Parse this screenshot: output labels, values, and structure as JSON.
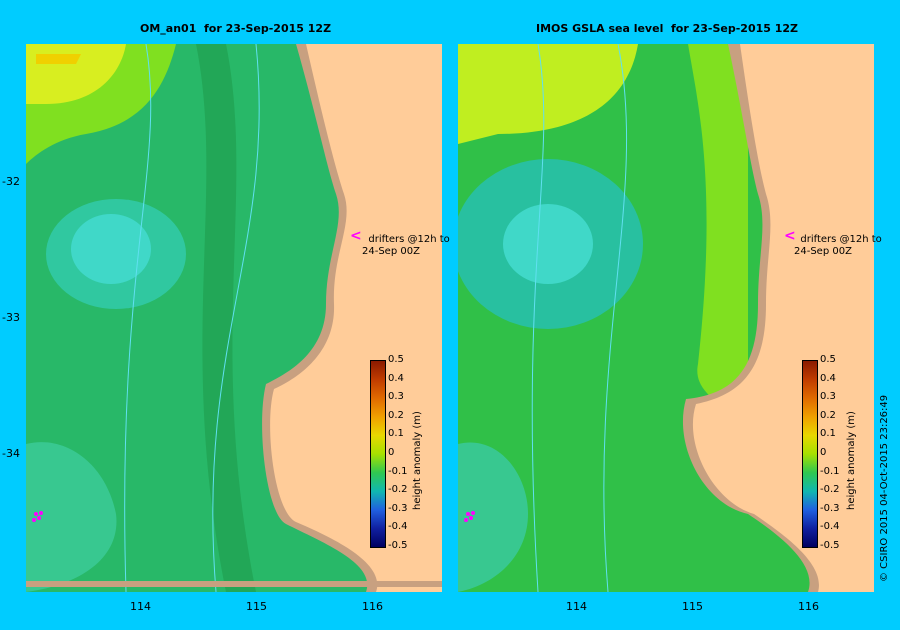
{
  "left_panel": {
    "title": "OM_an01  for 23-Sep-2015 12Z",
    "drifter_label_line1": "drifters @12h to",
    "drifter_label_line2": "24-Sep 00Z"
  },
  "right_panel": {
    "title": "IMOS GSLA sea level  for 23-Sep-2015 12Z",
    "drifter_label_line1": "drifters @12h to",
    "drifter_label_line2": "24-Sep 00Z"
  },
  "axes": {
    "x_ticks": [
      "114",
      "115",
      "116"
    ],
    "y_ticks": [
      "-32",
      "-33",
      "-34"
    ]
  },
  "colorbar": {
    "label": "height anomaly (m)",
    "ticks": [
      "0.5",
      "0.4",
      "0.3",
      "0.2",
      "0.1",
      "0",
      "-0.1",
      "-0.2",
      "-0.3",
      "-0.4",
      "-0.5"
    ],
    "colors": [
      "#8b1a00",
      "#c03c00",
      "#e06a00",
      "#f0a000",
      "#e8d800",
      "#a6e000",
      "#30c850",
      "#10b8b0",
      "#2060e0",
      "#1020a0",
      "#000060"
    ]
  },
  "copyright": "© CSIRO 2015   04-Oct-2015 23:26:49",
  "colors": {
    "background": "#00ccff",
    "land": "#ffcc99",
    "coast": "#c8a080",
    "water_mid": "#20b060",
    "drifter": "#ff00ff"
  }
}
